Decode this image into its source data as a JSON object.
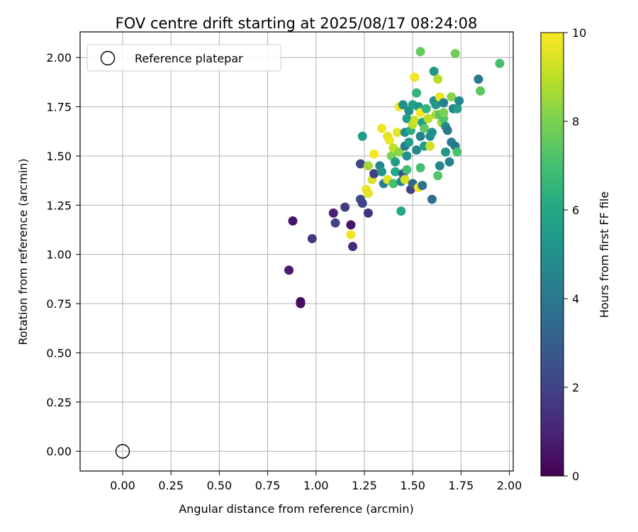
{
  "chart_data": {
    "type": "scatter",
    "title": "FOV centre drift starting at 2025/08/17 08:24:08",
    "xlabel": "Angular distance from reference (arcmin)",
    "ylabel": "Rotation from reference (arcmin)",
    "colorbar_label": "Hours from first FF file",
    "xlim": [
      -0.22,
      2.02
    ],
    "ylim": [
      -0.1,
      2.13
    ],
    "clim": [
      0,
      10
    ],
    "grid": true,
    "legend_position": "top-left",
    "x_ticks": [
      "0.00",
      "0.25",
      "0.50",
      "0.75",
      "1.00",
      "1.25",
      "1.50",
      "1.75",
      "2.00"
    ],
    "y_ticks": [
      "0.00",
      "0.25",
      "0.50",
      "0.75",
      "1.00",
      "1.25",
      "1.50",
      "1.75",
      "2.00"
    ],
    "colorbar_ticks": [
      "0",
      "2",
      "4",
      "6",
      "8",
      "10"
    ],
    "reference": {
      "label": "Reference platepar",
      "x": 0.0,
      "y": 0.0
    },
    "points": [
      {
        "x": 0.92,
        "y": 0.76,
        "h": 0.3
      },
      {
        "x": 0.92,
        "y": 0.75,
        "h": 0.4
      },
      {
        "x": 0.86,
        "y": 0.92,
        "h": 0.8
      },
      {
        "x": 0.88,
        "y": 1.17,
        "h": 0.6
      },
      {
        "x": 0.98,
        "y": 1.08,
        "h": 1.6
      },
      {
        "x": 1.09,
        "y": 1.21,
        "h": 0.9
      },
      {
        "x": 1.1,
        "y": 1.16,
        "h": 2.0
      },
      {
        "x": 1.15,
        "y": 1.24,
        "h": 1.7
      },
      {
        "x": 1.18,
        "y": 1.15,
        "h": 0.5
      },
      {
        "x": 1.19,
        "y": 1.04,
        "h": 1.2
      },
      {
        "x": 1.18,
        "y": 1.1,
        "h": 9.8
      },
      {
        "x": 1.23,
        "y": 1.28,
        "h": 2.3
      },
      {
        "x": 1.24,
        "y": 1.26,
        "h": 2.0
      },
      {
        "x": 1.27,
        "y": 1.21,
        "h": 1.4
      },
      {
        "x": 1.23,
        "y": 1.46,
        "h": 2.2
      },
      {
        "x": 1.24,
        "y": 1.6,
        "h": 5.5
      },
      {
        "x": 1.26,
        "y": 1.33,
        "h": 9.7
      },
      {
        "x": 1.27,
        "y": 1.31,
        "h": 9.6
      },
      {
        "x": 1.27,
        "y": 1.45,
        "h": 8.6
      },
      {
        "x": 1.29,
        "y": 1.38,
        "h": 9.4
      },
      {
        "x": 1.3,
        "y": 1.51,
        "h": 9.9
      },
      {
        "x": 1.3,
        "y": 1.41,
        "h": 1.8
      },
      {
        "x": 1.33,
        "y": 1.45,
        "h": 4.5
      },
      {
        "x": 1.34,
        "y": 1.42,
        "h": 5.2
      },
      {
        "x": 1.35,
        "y": 1.36,
        "h": 4.2
      },
      {
        "x": 1.34,
        "y": 1.64,
        "h": 9.8
      },
      {
        "x": 1.37,
        "y": 1.6,
        "h": 9.6
      },
      {
        "x": 1.38,
        "y": 1.58,
        "h": 9.7
      },
      {
        "x": 1.37,
        "y": 1.38,
        "h": 9.5
      },
      {
        "x": 1.39,
        "y": 1.5,
        "h": 8.0
      },
      {
        "x": 1.4,
        "y": 1.54,
        "h": 9.0
      },
      {
        "x": 1.4,
        "y": 1.36,
        "h": 7.0
      },
      {
        "x": 1.41,
        "y": 1.42,
        "h": 6.0
      },
      {
        "x": 1.41,
        "y": 1.47,
        "h": 5.4
      },
      {
        "x": 1.42,
        "y": 1.62,
        "h": 9.6
      },
      {
        "x": 1.43,
        "y": 1.52,
        "h": 8.3
      },
      {
        "x": 1.43,
        "y": 1.75,
        "h": 9.8
      },
      {
        "x": 1.44,
        "y": 1.37,
        "h": 4.6
      },
      {
        "x": 1.44,
        "y": 1.22,
        "h": 6.0
      },
      {
        "x": 1.45,
        "y": 1.41,
        "h": 2.6
      },
      {
        "x": 1.45,
        "y": 1.76,
        "h": 5.0
      },
      {
        "x": 1.46,
        "y": 1.55,
        "h": 4.0
      },
      {
        "x": 1.46,
        "y": 1.62,
        "h": 4.8
      },
      {
        "x": 1.46,
        "y": 1.38,
        "h": 9.4
      },
      {
        "x": 1.47,
        "y": 1.43,
        "h": 7.0
      },
      {
        "x": 1.47,
        "y": 1.5,
        "h": 5.0
      },
      {
        "x": 1.47,
        "y": 1.69,
        "h": 5.6
      },
      {
        "x": 1.48,
        "y": 1.57,
        "h": 5.5
      },
      {
        "x": 1.48,
        "y": 1.73,
        "h": 4.8
      },
      {
        "x": 1.49,
        "y": 1.63,
        "h": 6.2
      },
      {
        "x": 1.49,
        "y": 1.33,
        "h": 1.8
      },
      {
        "x": 1.5,
        "y": 1.36,
        "h": 3.4
      },
      {
        "x": 1.5,
        "y": 1.66,
        "h": 9.0
      },
      {
        "x": 1.5,
        "y": 1.76,
        "h": 5.7
      },
      {
        "x": 1.51,
        "y": 1.68,
        "h": 9.2
      },
      {
        "x": 1.51,
        "y": 1.9,
        "h": 9.8
      },
      {
        "x": 1.52,
        "y": 1.82,
        "h": 6.5
      },
      {
        "x": 1.52,
        "y": 1.53,
        "h": 4.6
      },
      {
        "x": 1.53,
        "y": 1.34,
        "h": 9.9
      },
      {
        "x": 1.53,
        "y": 1.75,
        "h": 5.3
      },
      {
        "x": 1.54,
        "y": 1.44,
        "h": 7.0
      },
      {
        "x": 1.54,
        "y": 1.72,
        "h": 9.9
      },
      {
        "x": 1.54,
        "y": 1.6,
        "h": 4.3
      },
      {
        "x": 1.54,
        "y": 2.03,
        "h": 7.6
      },
      {
        "x": 1.55,
        "y": 1.67,
        "h": 5.5
      },
      {
        "x": 1.55,
        "y": 1.35,
        "h": 3.7
      },
      {
        "x": 1.56,
        "y": 1.55,
        "h": 5.6
      },
      {
        "x": 1.56,
        "y": 1.64,
        "h": 7.5
      },
      {
        "x": 1.57,
        "y": 1.74,
        "h": 6.5
      },
      {
        "x": 1.58,
        "y": 1.69,
        "h": 9.0
      },
      {
        "x": 1.59,
        "y": 1.6,
        "h": 4.8
      },
      {
        "x": 1.59,
        "y": 1.55,
        "h": 9.3
      },
      {
        "x": 1.6,
        "y": 1.62,
        "h": 5.0
      },
      {
        "x": 1.6,
        "y": 1.28,
        "h": 3.5
      },
      {
        "x": 1.61,
        "y": 1.78,
        "h": 4.9
      },
      {
        "x": 1.61,
        "y": 1.93,
        "h": 5.2
      },
      {
        "x": 1.62,
        "y": 1.71,
        "h": 8.6
      },
      {
        "x": 1.62,
        "y": 1.76,
        "h": 5.4
      },
      {
        "x": 1.63,
        "y": 1.4,
        "h": 7.3
      },
      {
        "x": 1.63,
        "y": 1.89,
        "h": 8.9
      },
      {
        "x": 1.64,
        "y": 1.8,
        "h": 9.7
      },
      {
        "x": 1.64,
        "y": 1.71,
        "h": 7.3
      },
      {
        "x": 1.64,
        "y": 1.45,
        "h": 4.6
      },
      {
        "x": 1.65,
        "y": 1.67,
        "h": 8.5
      },
      {
        "x": 1.66,
        "y": 1.77,
        "h": 4.3
      },
      {
        "x": 1.66,
        "y": 1.69,
        "h": 7.2
      },
      {
        "x": 1.66,
        "y": 1.72,
        "h": 8.0
      },
      {
        "x": 1.67,
        "y": 1.65,
        "h": 5.0
      },
      {
        "x": 1.67,
        "y": 1.52,
        "h": 5.3
      },
      {
        "x": 1.68,
        "y": 1.63,
        "h": 4.0
      },
      {
        "x": 1.69,
        "y": 1.47,
        "h": 4.4
      },
      {
        "x": 1.7,
        "y": 1.57,
        "h": 4.2
      },
      {
        "x": 1.7,
        "y": 1.8,
        "h": 8.2
      },
      {
        "x": 1.71,
        "y": 1.74,
        "h": 4.5
      },
      {
        "x": 1.72,
        "y": 1.55,
        "h": 4.0
      },
      {
        "x": 1.72,
        "y": 2.02,
        "h": 7.8
      },
      {
        "x": 1.73,
        "y": 1.74,
        "h": 5.5
      },
      {
        "x": 1.73,
        "y": 1.52,
        "h": 7.1
      },
      {
        "x": 1.74,
        "y": 1.78,
        "h": 4.7
      },
      {
        "x": 1.84,
        "y": 1.89,
        "h": 4.1
      },
      {
        "x": 1.85,
        "y": 1.83,
        "h": 7.4
      },
      {
        "x": 1.95,
        "y": 1.97,
        "h": 7.0
      }
    ]
  }
}
